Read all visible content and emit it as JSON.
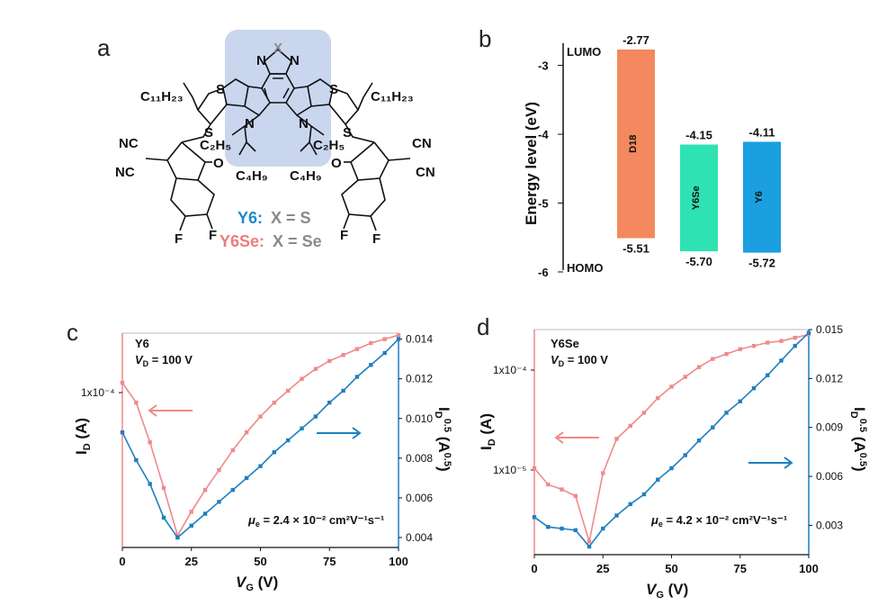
{
  "panel_a": {
    "label": "a",
    "substituent_alkyl": "C₁₁H₂₃",
    "alkyl_c2": "C₂H₅",
    "alkyl_c4": "C₄H₉",
    "atom_x": "X",
    "atom_n": "N",
    "atom_s": "S",
    "atom_o": "O",
    "atom_f": "F",
    "group_nc": "NC",
    "group_cn": "CN",
    "y6_name": "Y6:",
    "y6_rest": "X = S",
    "y6se_name": "Y6Se:",
    "y6se_rest": "X = Se",
    "colors": {
      "y6": "#1f88c9",
      "y6se": "#ef7b7b",
      "x": "#8a8a8a",
      "highlight": "#c9d6ee"
    }
  },
  "panel_b": {
    "label": "b",
    "chart_data": {
      "type": "bar",
      "ylabel": "Energy level (eV)",
      "ylim": [
        -6,
        -2.77
      ],
      "yticks": [
        "-3",
        "-4",
        "-5",
        "-6"
      ],
      "lumo_label": "LUMO",
      "homo_label": "HOMO",
      "bars": [
        {
          "name": "D18",
          "lumo": -2.77,
          "homo": -5.51,
          "lumo_text": "-2.77",
          "homo_text": "-5.51",
          "color": "#f4895f"
        },
        {
          "name": "Y6Se",
          "lumo": -4.15,
          "homo": -5.7,
          "lumo_text": "-4.15",
          "homo_text": "-5.70",
          "color": "#2fe2b3"
        },
        {
          "name": "Y6",
          "lumo": -4.11,
          "homo": -5.72,
          "lumo_text": "-4.11",
          "homo_text": "-5.72",
          "color": "#1b9fe0"
        }
      ]
    }
  },
  "panel_c": {
    "label": "c",
    "chart_data": {
      "type": "line",
      "title": "Y6",
      "condition_v": "V",
      "condition_sub": "D",
      "condition_rest": " = 100 V",
      "xlabel_v": "V",
      "xlabel_sub": "G",
      "xlabel_unit": " (V)",
      "ylabel_left": "I_D (A)",
      "ylabel_right": "I_D^0.5 (A^0.5)",
      "xlim": [
        0,
        100
      ],
      "xticks": [
        "0",
        "25",
        "50",
        "75",
        "100"
      ],
      "left_tick_label": "1x10⁻⁴",
      "right_ylim": [
        0.0035,
        0.0143
      ],
      "right_ticks": [
        "0.004",
        "0.006",
        "0.008",
        "0.010",
        "0.012",
        "0.014"
      ],
      "mobility_mu": "μ",
      "mobility_e": "e",
      "mobility_value": " = 2.4 × 10⁻² cm²V⁻¹s⁻¹",
      "series": [
        {
          "name": "I_D (log, left axis)",
          "color": "#f08a8a",
          "x": [
            0,
            5,
            10,
            15,
            20,
            25,
            30,
            35,
            40,
            45,
            50,
            55,
            60,
            65,
            70,
            75,
            80,
            85,
            90,
            95,
            100
          ],
          "y": [
            0.0118,
            0.0108,
            0.0088,
            0.0065,
            0.0041,
            0.0053,
            0.0064,
            0.0074,
            0.0084,
            0.0093,
            0.0101,
            0.0108,
            0.0114,
            0.012,
            0.0125,
            0.0129,
            0.0132,
            0.0135,
            0.0138,
            0.014,
            0.0142
          ]
        },
        {
          "name": "I_D^0.5 (right axis)",
          "color": "#1f7fc0",
          "x": [
            0,
            5,
            10,
            15,
            20,
            25,
            30,
            35,
            40,
            45,
            50,
            55,
            60,
            65,
            70,
            75,
            80,
            85,
            90,
            95,
            100
          ],
          "y": [
            0.0093,
            0.0079,
            0.0067,
            0.005,
            0.004,
            0.0046,
            0.0052,
            0.0058,
            0.0064,
            0.007,
            0.0076,
            0.0083,
            0.0089,
            0.0095,
            0.0101,
            0.0108,
            0.0114,
            0.0121,
            0.0127,
            0.0133,
            0.014
          ]
        }
      ]
    }
  },
  "panel_d": {
    "label": "d",
    "chart_data": {
      "type": "line",
      "title": "Y6Se",
      "condition_v": "V",
      "condition_sub": "D",
      "condition_rest": " = 100 V",
      "xlabel_v": "V",
      "xlabel_sub": "G",
      "xlabel_unit": " (V)",
      "ylabel_left": "I_D (A)",
      "ylabel_right": "I_D^0.5 (A^0.5)",
      "xlim": [
        0,
        100
      ],
      "xticks": [
        "0",
        "25",
        "50",
        "75",
        "100"
      ],
      "left_tick_labels": [
        "1x10⁻⁴",
        "1x10⁻⁵"
      ],
      "right_ylim": [
        0.0012,
        0.015
      ],
      "right_ticks": [
        "0.003",
        "0.006",
        "0.009",
        "0.012",
        "0.015"
      ],
      "mobility_mu": "μ",
      "mobility_e": "e",
      "mobility_value": " = 4.2 × 10⁻² cm²V⁻¹s⁻¹",
      "series": [
        {
          "name": "I_D (log, left axis)",
          "color": "#f08a8a",
          "x": [
            0,
            5,
            10,
            15,
            20,
            25,
            30,
            35,
            40,
            45,
            50,
            55,
            60,
            65,
            70,
            75,
            80,
            85,
            90,
            95,
            100
          ],
          "y": [
            0.0065,
            0.0055,
            0.0052,
            0.0048,
            0.002,
            0.0062,
            0.0083,
            0.0091,
            0.0099,
            0.0108,
            0.0115,
            0.0121,
            0.0127,
            0.0132,
            0.0135,
            0.0138,
            0.014,
            0.0142,
            0.0143,
            0.0145,
            0.0147
          ]
        },
        {
          "name": "I_D^0.5 (right axis)",
          "color": "#1f7fc0",
          "x": [
            0,
            5,
            10,
            15,
            20,
            25,
            30,
            35,
            40,
            45,
            50,
            55,
            60,
            65,
            70,
            75,
            80,
            85,
            90,
            95,
            100
          ],
          "y": [
            0.0035,
            0.0029,
            0.0028,
            0.0027,
            0.0017,
            0.0028,
            0.0036,
            0.0043,
            0.0049,
            0.0058,
            0.0065,
            0.0073,
            0.0082,
            0.009,
            0.0099,
            0.0106,
            0.0114,
            0.0122,
            0.0131,
            0.014,
            0.0148
          ]
        }
      ]
    }
  }
}
